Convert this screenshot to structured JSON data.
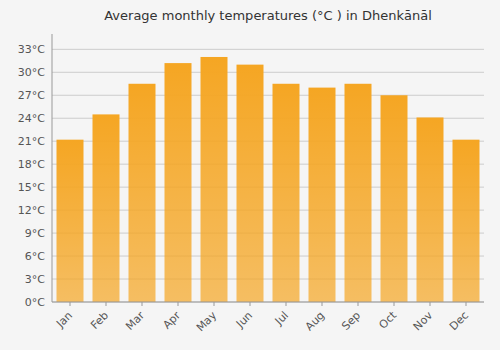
{
  "chart_data": {
    "type": "bar",
    "title": "Average monthly temperatures (°C ) in Dhenkānāl",
    "categories": [
      "Jan",
      "Feb",
      "Mar",
      "Apr",
      "May",
      "Jun",
      "Jul",
      "Aug",
      "Sep",
      "Oct",
      "Nov",
      "Dec"
    ],
    "values": [
      21.2,
      24.5,
      28.5,
      31.2,
      32.0,
      31.0,
      28.5,
      28.0,
      28.5,
      27.0,
      24.1,
      21.2
    ],
    "color": "#F5A623",
    "ylim": [
      0,
      35
    ],
    "yticks": [
      {
        "value": 0,
        "label": "0°C"
      },
      {
        "value": 3,
        "label": "3°C"
      },
      {
        "value": 6,
        "label": "6°C"
      },
      {
        "value": 9,
        "label": "9°C"
      },
      {
        "value": 12,
        "label": "12°C"
      },
      {
        "value": 15,
        "label": "15°C"
      },
      {
        "value": 18,
        "label": "18°C"
      },
      {
        "value": 21,
        "label": "21°C"
      },
      {
        "value": 24,
        "label": "24°C"
      },
      {
        "value": 27,
        "label": "27°C"
      },
      {
        "value": 30,
        "label": "30°C"
      },
      {
        "value": 33,
        "label": "33°C"
      }
    ],
    "grid": true
  }
}
